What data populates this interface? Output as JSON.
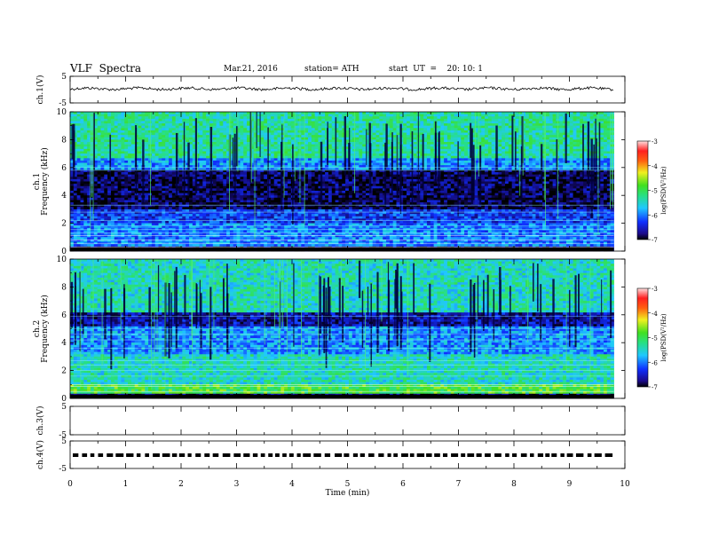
{
  "header": {
    "title": "VLF  Spectra",
    "date": "Mar.21, 2016",
    "station": "station= ATH",
    "start_ut": "start  UT  =    20: 10: 1"
  },
  "chart_data": [
    {
      "type": "line",
      "panel": "ch1-waveform",
      "ylabel": "ch.1(V)",
      "ylim": [
        -5,
        5
      ],
      "yticks": [
        "5",
        "-5"
      ],
      "xlim": [
        0,
        10
      ]
    },
    {
      "type": "heatmap",
      "panel": "ch1-spectrogram",
      "ylabel": "ch.1\nFrequency  (kHz)",
      "ylim": [
        0,
        10
      ],
      "yticks": [
        "0",
        "2",
        "4",
        "6",
        "8",
        "10"
      ],
      "xlim": [
        0,
        10
      ],
      "data_end_min": 9.8,
      "colorbar": {
        "label": "log(PSD(V²/Hz)",
        "range": [
          -7,
          -3
        ],
        "ticks": [
          "-3",
          "-4",
          "-5",
          "-6",
          "-7"
        ]
      }
    },
    {
      "type": "heatmap",
      "panel": "ch2-spectrogram",
      "ylabel": "ch.2\nFrequency  (kHz)",
      "ylim": [
        0,
        10
      ],
      "yticks": [
        "0",
        "2",
        "4",
        "6",
        "8",
        "10"
      ],
      "xlim": [
        0,
        10
      ],
      "data_end_min": 9.8,
      "colorbar": {
        "label": "log(PSD(V²/Hz)",
        "range": [
          -7,
          -3
        ],
        "ticks": [
          "-3",
          "-4",
          "-5",
          "-6",
          "-7"
        ]
      }
    },
    {
      "type": "line",
      "panel": "ch3-waveform",
      "ylabel": "ch.3(V)",
      "ylim": [
        -5,
        5
      ],
      "yticks": [
        "5",
        "-5"
      ],
      "xlim": [
        0,
        10
      ]
    },
    {
      "type": "line",
      "panel": "ch4-waveform",
      "ylabel": "ch.4(V)",
      "ylim": [
        -5,
        5
      ],
      "yticks": [
        "5",
        "-5"
      ],
      "xlim": [
        0,
        10
      ]
    }
  ],
  "xaxis": {
    "label": "Time  (min)",
    "ticks": [
      "0",
      "1",
      "2",
      "3",
      "4",
      "5",
      "6",
      "7",
      "8",
      "9",
      "10"
    ]
  }
}
